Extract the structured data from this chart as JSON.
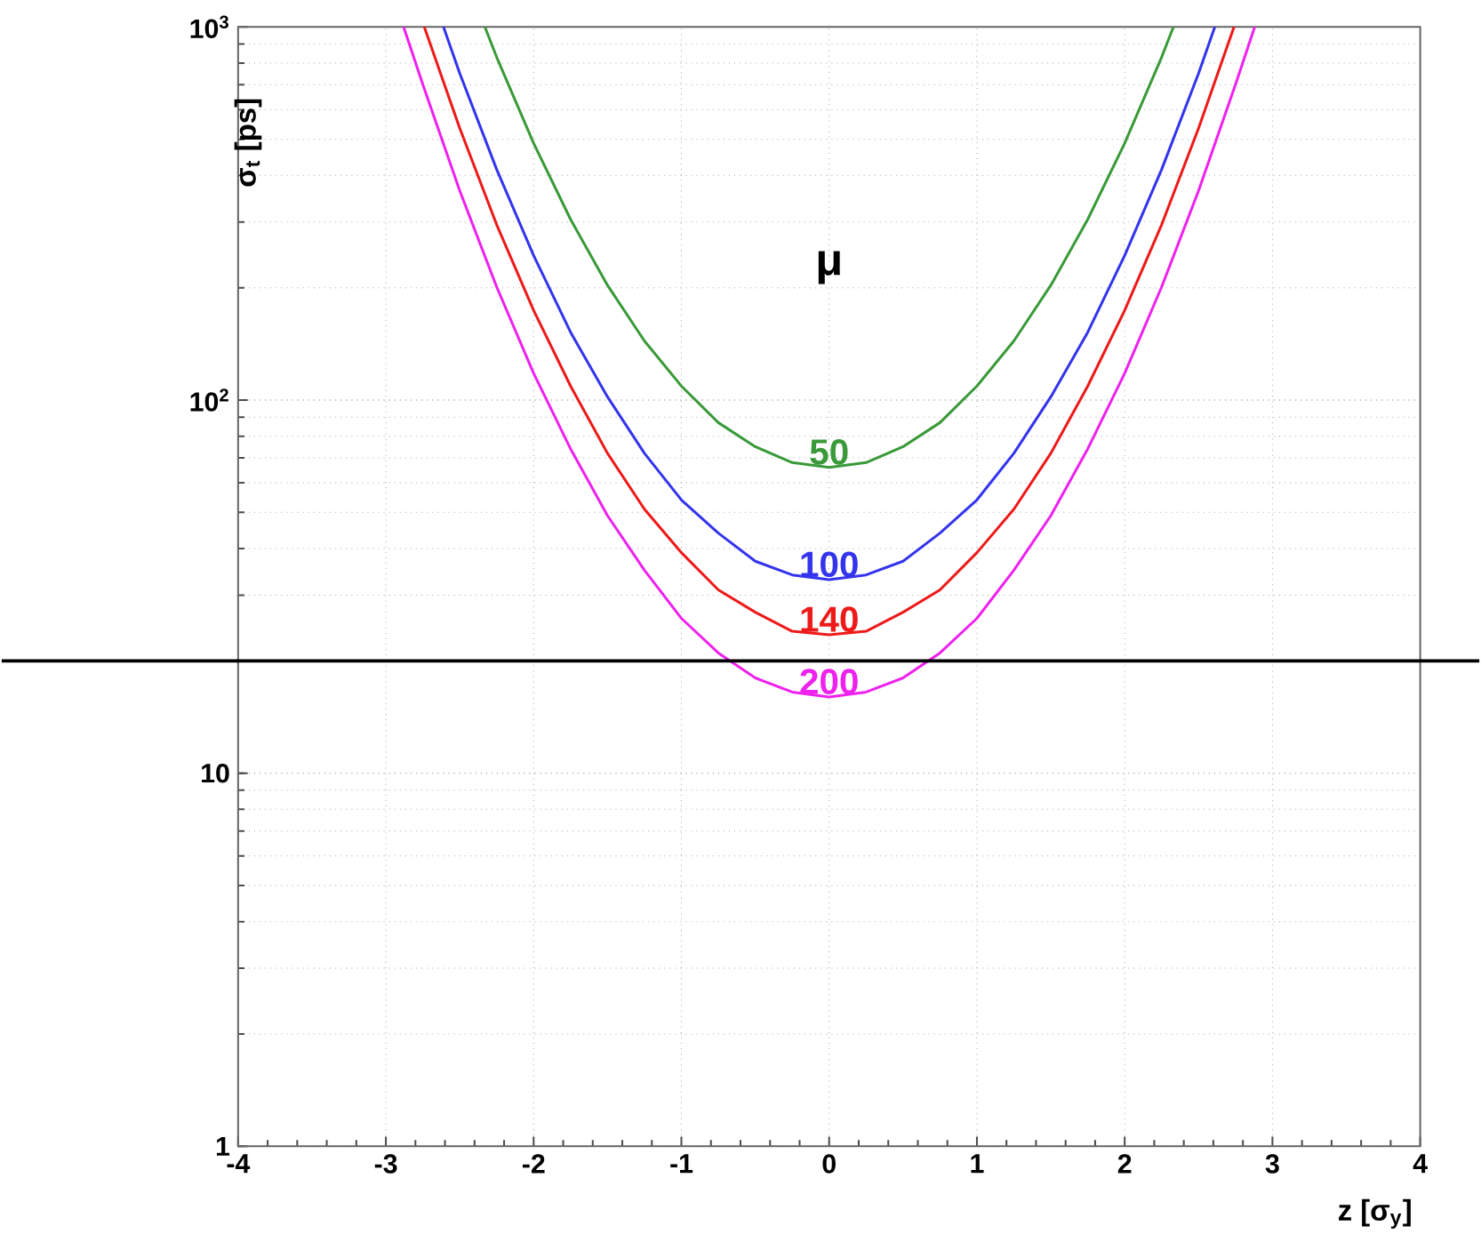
{
  "chart_data": {
    "type": "line",
    "xlabel": "z [σ$_{y}$]",
    "ylabel": "σ$_{t}$ [ps]",
    "legend_title": "μ",
    "xlim": [
      -4,
      4
    ],
    "ylim": [
      1,
      1000
    ],
    "log": "y",
    "grid": true,
    "legend": false,
    "marker": "none",
    "line_style": "solid",
    "xticks": [
      -4,
      -3,
      -2,
      -1,
      0,
      1,
      2,
      3,
      4
    ],
    "yticks": [
      1,
      10,
      {
        "value": 100,
        "label": "10$^{2}$"
      },
      {
        "value": 1000,
        "label": "10$^{3}$"
      }
    ],
    "ref_lines": [
      {
        "axis": "y",
        "value": 20,
        "color": "#000000"
      }
    ],
    "series": [
      {
        "name": "50",
        "color": "#3a9a3a",
        "x": [
          -2.33,
          -2.25,
          -2,
          -1.75,
          -1.5,
          -1.25,
          -1,
          -0.75,
          -0.5,
          -0.25,
          0,
          0.25,
          0.5,
          0.75,
          1,
          1.25,
          1.5,
          1.75,
          2,
          2.25,
          2.33
        ],
        "values": [
          1000,
          830,
          488,
          305,
          203,
          144,
          109,
          87,
          75,
          68,
          66,
          68,
          75,
          87,
          109,
          144,
          203,
          305,
          488,
          830,
          1000
        ]
      },
      {
        "name": "100",
        "color": "#3434ee",
        "x": [
          -2.61,
          -2.5,
          -2.25,
          -2,
          -1.75,
          -1.5,
          -1.25,
          -1,
          -0.75,
          -0.5,
          -0.25,
          0,
          0.25,
          0.5,
          0.75,
          1,
          1.25,
          1.5,
          1.75,
          2,
          2.25,
          2.5,
          2.61
        ],
        "values": [
          1000,
          751,
          415,
          244,
          152,
          102,
          72,
          54,
          44,
          37,
          34,
          33,
          34,
          37,
          44,
          54,
          72,
          102,
          152,
          244,
          415,
          751,
          1000
        ]
      },
      {
        "name": "140",
        "color": "#ee1a1a",
        "x": [
          -2.74,
          -2.5,
          -2.25,
          -2,
          -1.75,
          -1.5,
          -1.25,
          -1,
          -0.75,
          -0.5,
          -0.25,
          0,
          0.25,
          0.5,
          0.75,
          1,
          1.25,
          1.5,
          1.75,
          2,
          2.25,
          2.5,
          2.74
        ],
        "values": [
          1000,
          535,
          295,
          174,
          109,
          72,
          51,
          39,
          31,
          27,
          24,
          23.5,
          24,
          27,
          31,
          39,
          51,
          72,
          109,
          174,
          295,
          535,
          1000
        ]
      },
      {
        "name": "200",
        "color": "#ee22ee",
        "x": [
          -2.88,
          -2.75,
          -2.5,
          -2.25,
          -2,
          -1.75,
          -1.5,
          -1.25,
          -1,
          -0.75,
          -0.5,
          -0.25,
          0,
          0.25,
          0.5,
          0.75,
          1,
          1.25,
          1.5,
          1.75,
          2,
          2.25,
          2.5,
          2.75,
          2.88
        ],
        "values": [
          1000,
          701,
          364,
          201,
          118,
          74,
          49,
          35,
          26,
          21,
          18,
          16.5,
          16,
          16.5,
          18,
          21,
          26,
          35,
          49,
          74,
          118,
          201,
          364,
          701,
          1000
        ]
      }
    ]
  }
}
